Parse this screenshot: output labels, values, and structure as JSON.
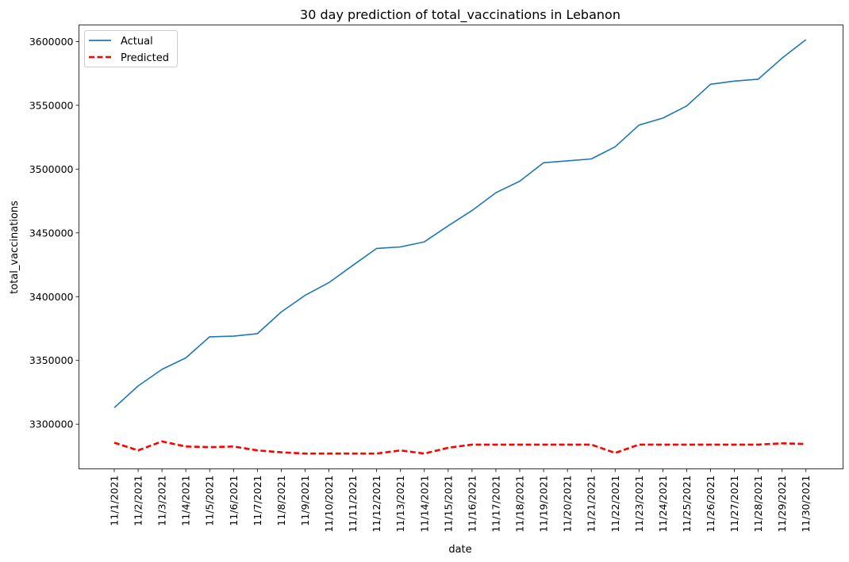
{
  "chart_data": {
    "type": "line",
    "title": "30 day prediction of total_vaccinations in Lebanon",
    "xlabel": "date",
    "ylabel": "total_vaccinations",
    "categories": [
      "11/1/2021",
      "11/2/2021",
      "11/3/2021",
      "11/4/2021",
      "11/5/2021",
      "11/6/2021",
      "11/7/2021",
      "11/8/2021",
      "11/9/2021",
      "11/10/2021",
      "11/11/2021",
      "11/12/2021",
      "11/13/2021",
      "11/14/2021",
      "11/15/2021",
      "11/16/2021",
      "11/17/2021",
      "11/18/2021",
      "11/19/2021",
      "11/20/2021",
      "11/21/2021",
      "11/22/2021",
      "11/23/2021",
      "11/24/2021",
      "11/25/2021",
      "11/26/2021",
      "11/27/2021",
      "11/28/2021",
      "11/29/2021",
      "11/30/2021"
    ],
    "ylim": [
      3265000,
      3613000
    ],
    "yticks": [
      3300000,
      3350000,
      3400000,
      3450000,
      3500000,
      3550000,
      3600000
    ],
    "ytick_labels": [
      "3300000",
      "3350000",
      "3400000",
      "3450000",
      "3500000",
      "3550000",
      "3600000"
    ],
    "grid": false,
    "legend_position": "upper-left",
    "series": [
      {
        "name": "Actual",
        "color": "#1f77b4",
        "style": "solid",
        "values": [
          3313000,
          3330000,
          3343000,
          3352000,
          3368500,
          3369000,
          3371000,
          3388000,
          3401000,
          3411000,
          3424500,
          3437800,
          3439000,
          3443000,
          3455500,
          3467500,
          3481500,
          3490500,
          3505000,
          3506500,
          3508000,
          3517500,
          3534500,
          3540000,
          3549500,
          3566500,
          3569000,
          3570500,
          3587000,
          3601500
        ]
      },
      {
        "name": "Predicted",
        "color": "#ff0000",
        "style": "dashed",
        "values": [
          3285500,
          3279500,
          3286500,
          3282500,
          3282000,
          3282500,
          3279500,
          3278000,
          3277000,
          3277000,
          3277000,
          3277000,
          3279500,
          3277000,
          3281500,
          3284000,
          3284000,
          3284000,
          3284000,
          3284000,
          3284000,
          3277500,
          3284000,
          3284000,
          3284000,
          3284000,
          3284000,
          3284000,
          3285000,
          3284500
        ]
      }
    ]
  }
}
